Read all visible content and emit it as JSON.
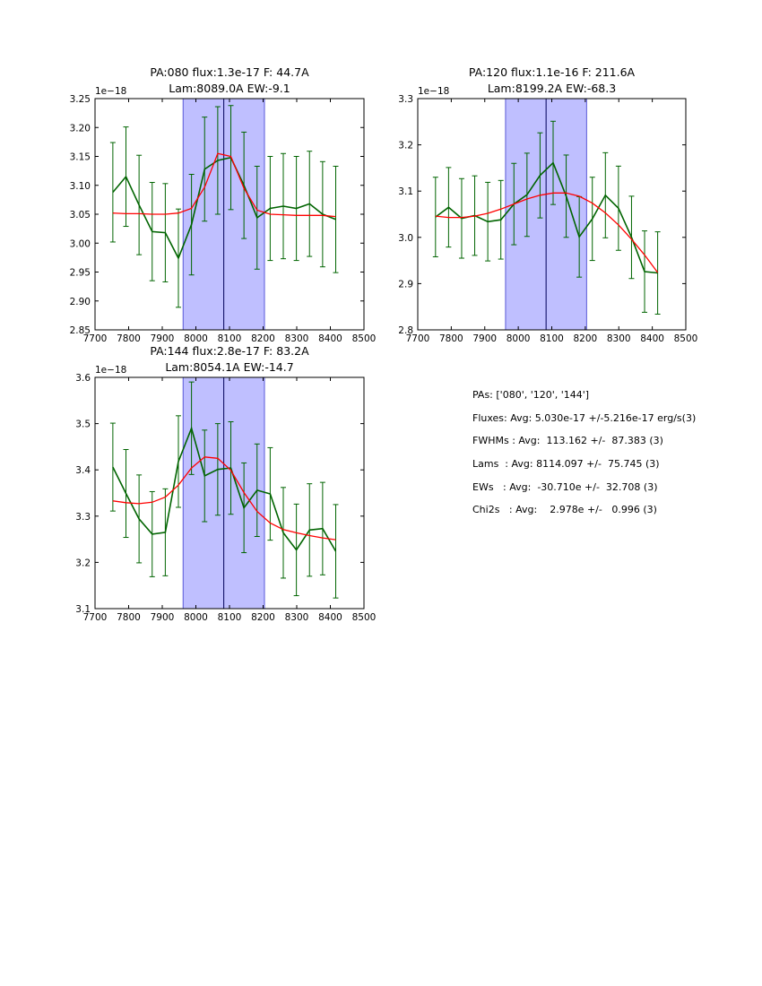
{
  "chart_data": [
    {
      "type": "line",
      "title_line1": "PA:080 flux:1.3e-17 F: 44.7A",
      "title_line2": "Lam:8089.0A EW:-9.1",
      "offset_label": "1e−18",
      "xlim": [
        7700,
        8500
      ],
      "ylim": [
        2.85,
        3.25
      ],
      "xticks": [
        "7700",
        "7800",
        "7900",
        "8000",
        "8100",
        "8200",
        "8300",
        "8400",
        "8500"
      ],
      "yticks": [
        "2.85",
        "2.90",
        "2.95",
        "3.00",
        "3.05",
        "3.10",
        "3.15",
        "3.20",
        "3.25"
      ],
      "band": [
        7962,
        8204
      ],
      "vline": 8083,
      "series": [
        {
          "x": [
            7753,
            7792,
            7831,
            7870,
            7909,
            7948,
            7987,
            8026,
            8065,
            8104,
            8143,
            8182,
            8221,
            8260,
            8299,
            8338,
            8377,
            8416
          ],
          "y": [
            3.088,
            3.115,
            3.066,
            3.02,
            3.018,
            2.974,
            3.032,
            3.128,
            3.143,
            3.148,
            3.1,
            3.044,
            3.06,
            3.064,
            3.06,
            3.068,
            3.05,
            3.041
          ],
          "err": [
            0.086,
            0.086,
            0.086,
            0.085,
            0.085,
            0.085,
            0.087,
            0.09,
            0.093,
            0.09,
            0.092,
            0.089,
            0.09,
            0.091,
            0.09,
            0.091,
            0.091,
            0.092
          ],
          "color": "#006400"
        },
        {
          "x": [
            7753,
            7792,
            7831,
            7870,
            7909,
            7948,
            7987,
            8026,
            8065,
            8104,
            8143,
            8182,
            8221,
            8260,
            8299,
            8338,
            8377,
            8416
          ],
          "y": [
            3.052,
            3.051,
            3.051,
            3.05,
            3.05,
            3.052,
            3.06,
            3.097,
            3.155,
            3.15,
            3.095,
            3.057,
            3.05,
            3.049,
            3.048,
            3.048,
            3.048,
            3.046
          ],
          "color": "#ff0000"
        }
      ]
    },
    {
      "type": "line",
      "title_line1": "PA:120 flux:1.1e-16 F: 211.6A",
      "title_line2": "Lam:8199.2A EW:-68.3",
      "offset_label": "1e−18",
      "xlim": [
        7700,
        8500
      ],
      "ylim": [
        2.8,
        3.3
      ],
      "xticks": [
        "7700",
        "7800",
        "7900",
        "8000",
        "8100",
        "8200",
        "8300",
        "8400",
        "8500"
      ],
      "yticks": [
        "2.8",
        "2.9",
        "3.0",
        "3.1",
        "3.2",
        "3.3"
      ],
      "band": [
        7962,
        8204
      ],
      "vline": 8083,
      "series": [
        {
          "x": [
            7753,
            7792,
            7831,
            7870,
            7909,
            7948,
            7987,
            8026,
            8065,
            8104,
            8143,
            8182,
            8221,
            8260,
            8299,
            8338,
            8377,
            8416
          ],
          "y": [
            3.044,
            3.065,
            3.041,
            3.047,
            3.034,
            3.038,
            3.072,
            3.092,
            3.134,
            3.161,
            3.089,
            3.001,
            3.04,
            3.091,
            3.063,
            3.0,
            2.926,
            2.923
          ],
          "err": [
            0.086,
            0.086,
            0.086,
            0.086,
            0.085,
            0.085,
            0.088,
            0.09,
            0.092,
            0.09,
            0.089,
            0.087,
            0.09,
            0.092,
            0.091,
            0.089,
            0.088,
            0.089
          ],
          "color": "#006400"
        },
        {
          "x": [
            7753,
            7792,
            7831,
            7870,
            7909,
            7948,
            7987,
            8026,
            8065,
            8104,
            8143,
            8182,
            8221,
            8260,
            8299,
            8338,
            8377,
            8416
          ],
          "y": [
            3.046,
            3.043,
            3.043,
            3.046,
            3.052,
            3.061,
            3.072,
            3.083,
            3.091,
            3.096,
            3.096,
            3.089,
            3.074,
            3.053,
            3.027,
            2.996,
            2.962,
            2.924
          ],
          "color": "#ff0000"
        }
      ]
    },
    {
      "type": "line",
      "title_line1": "PA:144 flux:2.8e-17 F: 83.2A",
      "title_line2": "Lam:8054.1A EW:-14.7",
      "offset_label": "1e−18",
      "xlim": [
        7700,
        8500
      ],
      "ylim": [
        3.1,
        3.6
      ],
      "xticks": [
        "7700",
        "7800",
        "7900",
        "8000",
        "8100",
        "8200",
        "8300",
        "8400",
        "8500"
      ],
      "yticks": [
        "3.1",
        "3.2",
        "3.3",
        "3.4",
        "3.5",
        "3.6"
      ],
      "band": [
        7962,
        8204
      ],
      "vline": 8083,
      "series": [
        {
          "x": [
            7753,
            7792,
            7831,
            7870,
            7909,
            7948,
            7987,
            8026,
            8065,
            8104,
            8143,
            8182,
            8221,
            8260,
            8299,
            8338,
            8377,
            8416
          ],
          "y": [
            3.406,
            3.349,
            3.294,
            3.261,
            3.265,
            3.418,
            3.49,
            3.387,
            3.401,
            3.404,
            3.318,
            3.356,
            3.348,
            3.264,
            3.227,
            3.27,
            3.273,
            3.224
          ],
          "err": [
            0.095,
            0.095,
            0.095,
            0.092,
            0.094,
            0.099,
            0.1,
            0.099,
            0.099,
            0.1,
            0.097,
            0.1,
            0.1,
            0.098,
            0.099,
            0.1,
            0.1,
            0.101
          ],
          "color": "#006400"
        },
        {
          "x": [
            7753,
            7792,
            7831,
            7870,
            7909,
            7948,
            7987,
            8026,
            8065,
            8104,
            8143,
            8182,
            8221,
            8260,
            8299,
            8338,
            8377,
            8416
          ],
          "y": [
            3.333,
            3.329,
            3.327,
            3.33,
            3.341,
            3.367,
            3.404,
            3.428,
            3.425,
            3.399,
            3.351,
            3.31,
            3.285,
            3.271,
            3.264,
            3.258,
            3.253,
            3.249
          ],
          "color": "#ff0000"
        }
      ]
    }
  ],
  "summary": {
    "pas": "PAs: ['080', '120', '144']",
    "fluxes": "Fluxes: Avg: 5.030e-17 +/-5.216e-17 erg/s(3)",
    "fwhms": "FWHMs : Avg:  113.162 +/-  87.383 (3)",
    "lams": "Lams  : Avg: 8114.097 +/-  75.745 (3)",
    "ews": "EWs   : Avg:  -30.710e +/-  32.708 (3)",
    "chi2s": "Chi2s   : Avg:    2.978e +/-   0.996 (3)"
  },
  "colors": {
    "data_line": "#006400",
    "model_line": "#ff0000",
    "band_fill": "#bfbfff",
    "band_edge": "#5a5ad8",
    "vline": "#00005a"
  }
}
